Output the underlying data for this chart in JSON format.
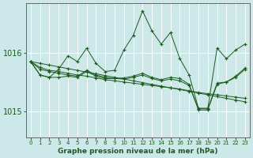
{
  "xlabel": "Graphe pression niveau de la mer (hPa)",
  "ylabel": "",
  "bg_color": "#cce8e8",
  "plot_bg_color": "#cce8e8",
  "line_color": "#1a5c1a",
  "grid_color": "#ffffff",
  "yticks": [
    1015,
    1016
  ],
  "ylim": [
    1014.55,
    1016.85
  ],
  "xlim": [
    -0.5,
    23.5
  ],
  "xticks": [
    0,
    1,
    2,
    3,
    4,
    5,
    6,
    7,
    8,
    9,
    10,
    11,
    12,
    13,
    14,
    15,
    16,
    17,
    18,
    19,
    20,
    21,
    22,
    23
  ],
  "series_main": [
    1015.85,
    1015.62,
    1015.58,
    1015.72,
    1015.95,
    1015.85,
    1016.08,
    1015.82,
    1015.68,
    1015.7,
    1016.05,
    1016.3,
    1016.72,
    1016.38,
    1016.15,
    1016.35,
    1015.9,
    1015.62,
    1015.05,
    1015.05,
    1016.08,
    1015.9,
    1016.05,
    1016.15
  ],
  "series_trend1": [
    1015.85,
    1015.72,
    1015.68,
    1015.65,
    1015.62,
    1015.6,
    1015.7,
    1015.62,
    1015.58,
    1015.56,
    1015.55,
    1015.58,
    1015.62,
    1015.56,
    1015.52,
    1015.55,
    1015.52,
    1015.44,
    1015.04,
    1015.04,
    1015.48,
    1015.5,
    1015.58,
    1015.72
  ],
  "series_trend2": [
    1015.85,
    1015.62,
    1015.58,
    1015.58,
    1015.6,
    1015.58,
    1015.68,
    1015.6,
    1015.56,
    1015.56,
    1015.57,
    1015.6,
    1015.65,
    1015.58,
    1015.54,
    1015.58,
    1015.56,
    1015.46,
    1015.02,
    1015.02,
    1015.46,
    1015.5,
    1015.6,
    1015.74
  ],
  "series_diag1": [
    1015.85,
    1015.75,
    1015.7,
    1015.68,
    1015.65,
    1015.62,
    1015.6,
    1015.57,
    1015.54,
    1015.52,
    1015.5,
    1015.48,
    1015.46,
    1015.44,
    1015.42,
    1015.4,
    1015.38,
    1015.35,
    1015.32,
    1015.3,
    1015.28,
    1015.26,
    1015.24,
    1015.22
  ],
  "series_diag2": [
    1015.85,
    1015.82,
    1015.79,
    1015.76,
    1015.73,
    1015.7,
    1015.67,
    1015.64,
    1015.61,
    1015.58,
    1015.55,
    1015.52,
    1015.49,
    1015.46,
    1015.43,
    1015.4,
    1015.37,
    1015.34,
    1015.31,
    1015.28,
    1015.25,
    1015.22,
    1015.19,
    1015.16
  ]
}
